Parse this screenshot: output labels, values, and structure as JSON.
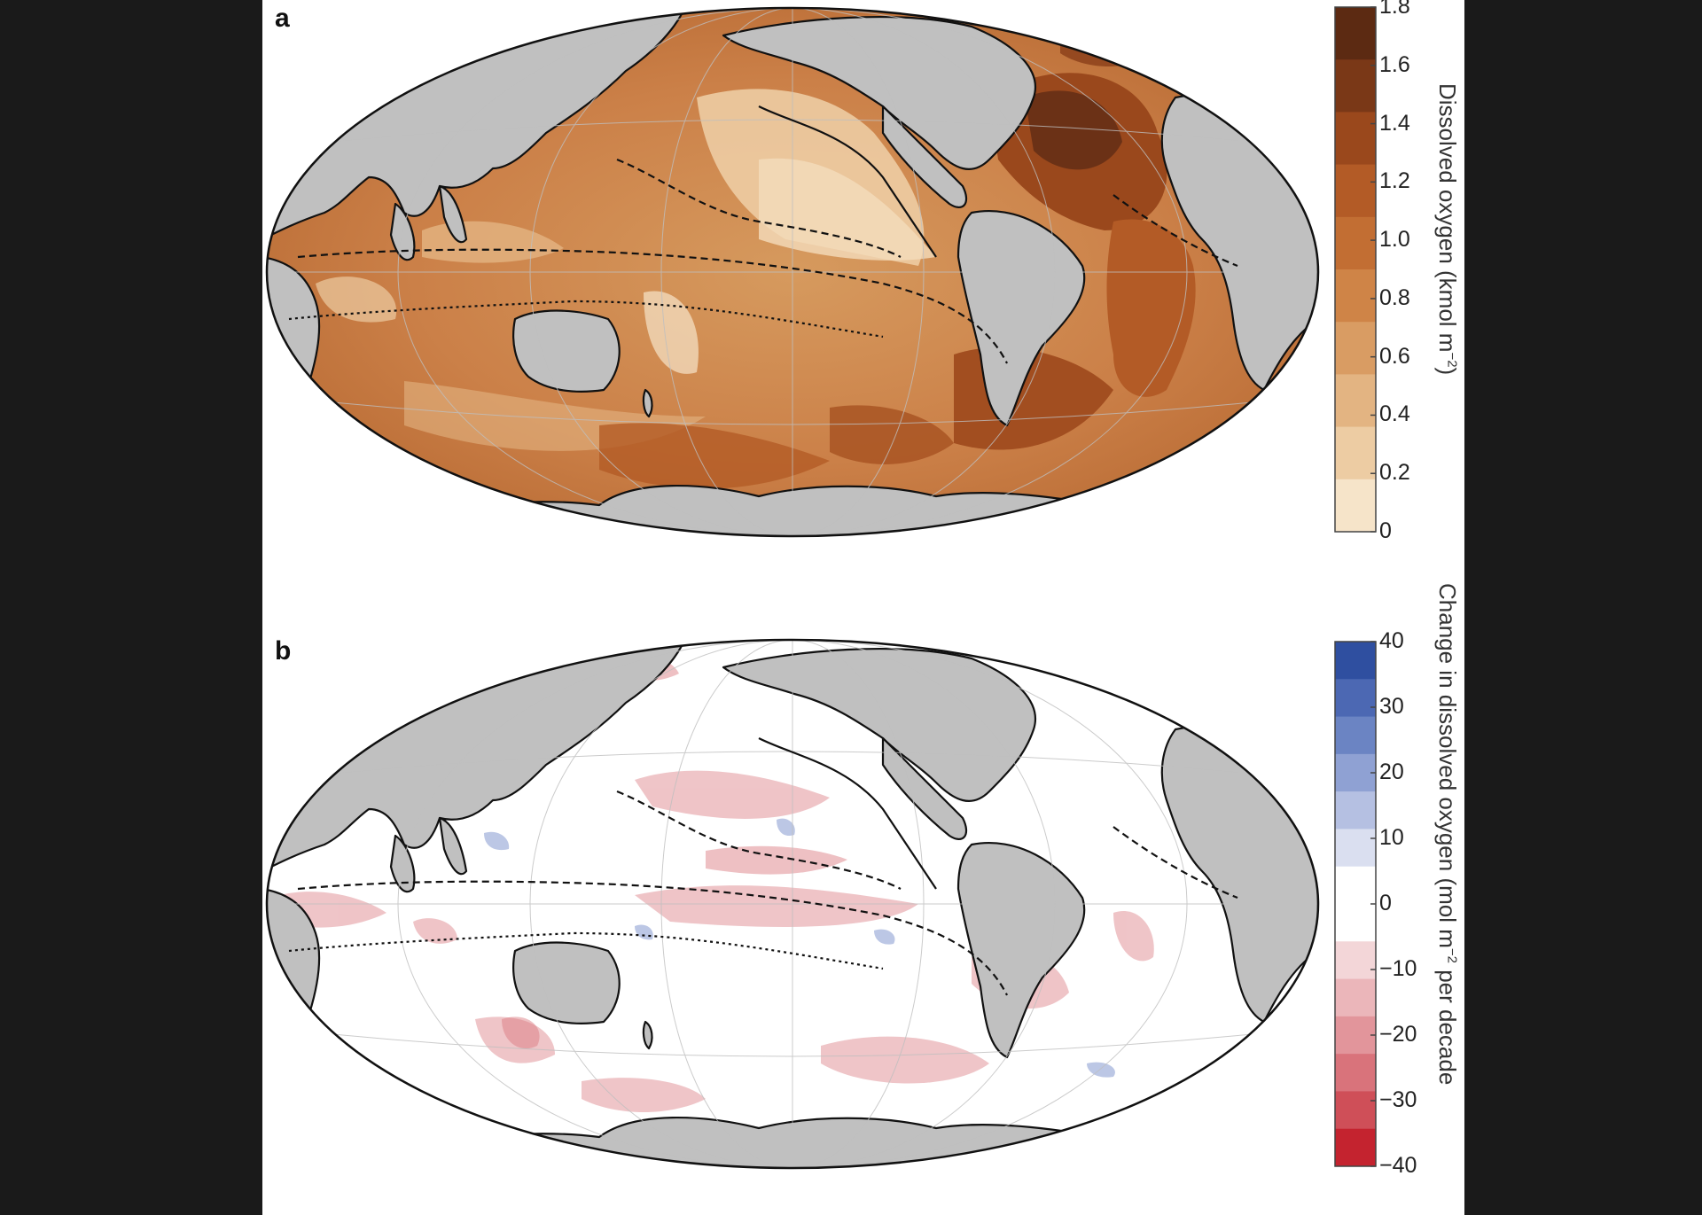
{
  "panels": [
    {
      "letter": "a",
      "colorbar": {
        "ticks": [
          "1.8",
          "1.6",
          "1.4",
          "1.2",
          "1.0",
          "0.8",
          "0.6",
          "0.4",
          "0.2",
          "0"
        ],
        "colors": [
          "#5c2a12",
          "#7a3817",
          "#9a481c",
          "#b35b26",
          "#c26e33",
          "#cf8447",
          "#d99c63",
          "#e3b482",
          "#edcca3",
          "#f6e4c9"
        ],
        "title": "Dissolved oxygen (kmol m",
        "title_sup": "−2",
        "title_end": ")"
      }
    },
    {
      "letter": "b",
      "colorbar": {
        "ticks": [
          "40",
          "30",
          "20",
          "10",
          "0",
          "−10",
          "−20",
          "−30",
          "−40"
        ],
        "colors": [
          "#2f4fa0",
          "#4c68b3",
          "#6b84c3",
          "#8fa1d3",
          "#b5c0e2",
          "#dadff0",
          "#ffffff",
          "#ffffff",
          "#f3d6d8",
          "#ebb6ba",
          "#e2959b",
          "#d9737b",
          "#cf4f58",
          "#c4232f"
        ],
        "title": "Change in dissolved oxygen (mol m",
        "title_sup": "−2",
        "title_end": " per decade"
      }
    }
  ]
}
